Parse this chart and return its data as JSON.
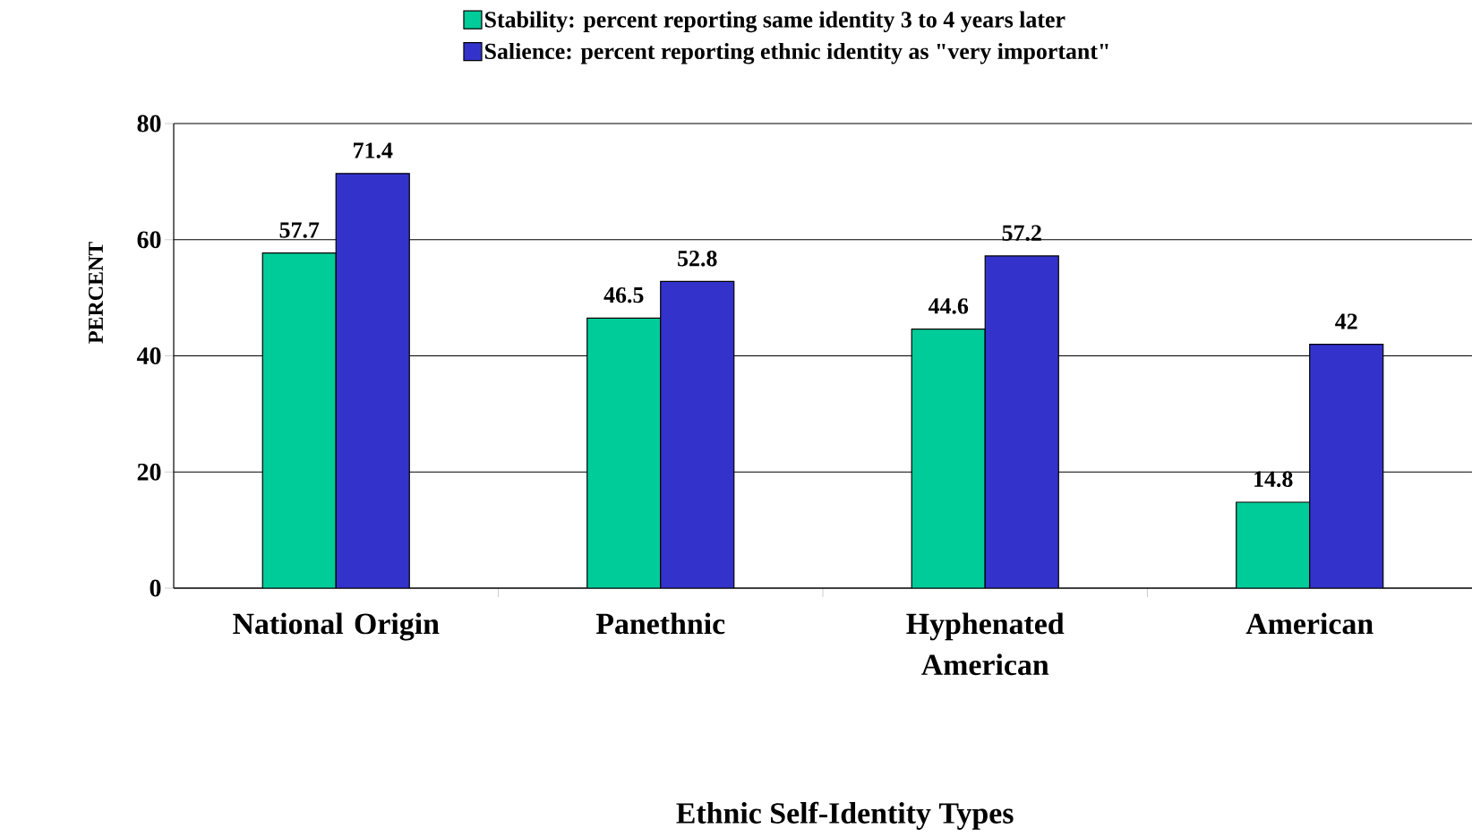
{
  "chart_data": {
    "type": "bar",
    "xlabel": "Ethnic Self-Identity Types",
    "ylabel": "PERCENT",
    "categories": [
      "National Origin",
      "Panethnic",
      "Hyphenated American",
      "American"
    ],
    "series": [
      {
        "name": "Stability: percent reporting same identity 3 to 4 years later",
        "color": "#00cc99",
        "values": [
          57.7,
          46.5,
          44.6,
          14.8
        ]
      },
      {
        "name": "Salience: percent reporting ethnic identity as \"very important\"",
        "color": "#3333cc",
        "values": [
          71.4,
          52.8,
          57.2,
          42
        ]
      }
    ],
    "ylim": [
      0,
      80
    ],
    "yticks": [
      0,
      20,
      40,
      60,
      80
    ],
    "grid": "y",
    "legend": "top",
    "data_labels": true
  }
}
